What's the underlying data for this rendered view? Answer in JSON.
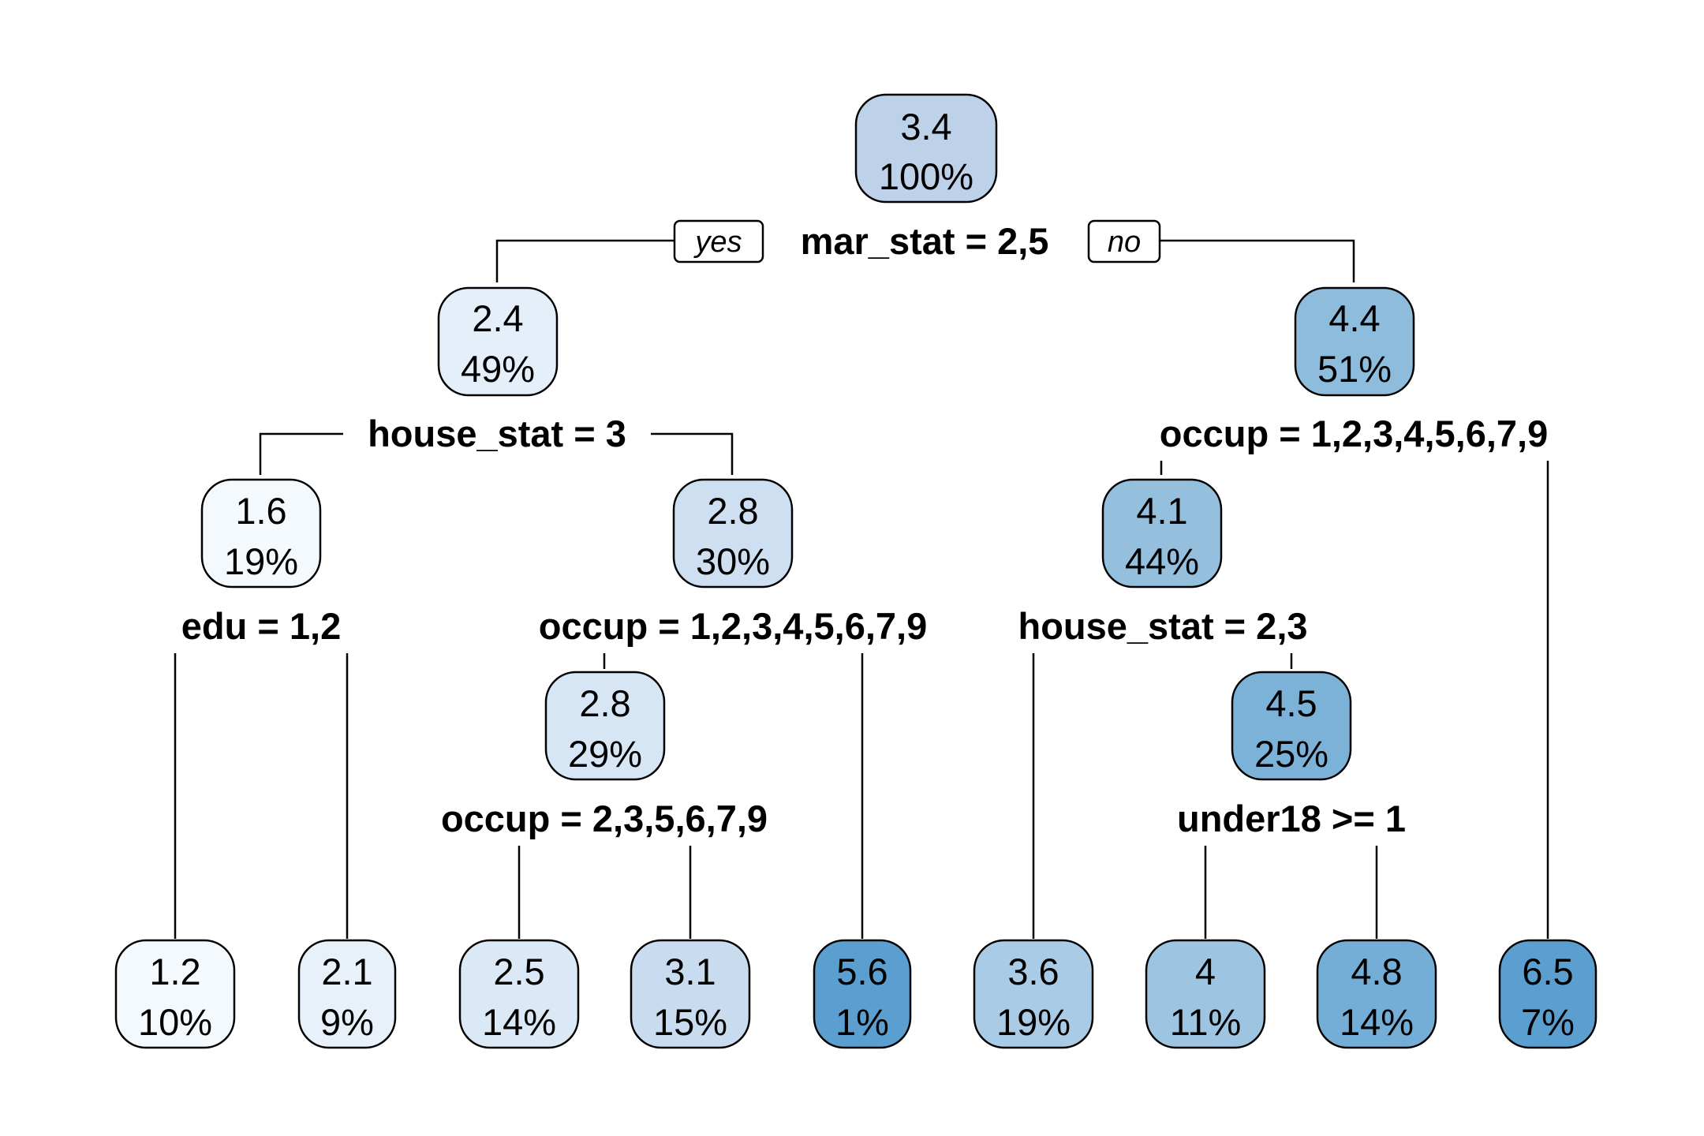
{
  "yes_label": "yes",
  "no_label": "no",
  "nodes": {
    "root": {
      "value": "3.4",
      "percent": "100%",
      "fill": "#bdd1e8"
    },
    "n2": {
      "value": "2.4",
      "percent": "49%",
      "fill": "#e5effa"
    },
    "n3": {
      "value": "4.4",
      "percent": "51%",
      "fill": "#8dbcdd"
    },
    "n4": {
      "value": "1.6",
      "percent": "19%",
      "fill": "#f4f9fe"
    },
    "n5": {
      "value": "2.8",
      "percent": "30%",
      "fill": "#cddff0"
    },
    "n6": {
      "value": "4.1",
      "percent": "44%",
      "fill": "#94c0de"
    },
    "n10": {
      "value": "2.8",
      "percent": "29%",
      "fill": "#d7e6f5"
    },
    "n13": {
      "value": "4.5",
      "percent": "25%",
      "fill": "#7db2d8"
    },
    "l1": {
      "value": "1.2",
      "percent": "10%",
      "fill": "#f4f9fe"
    },
    "l2": {
      "value": "2.1",
      "percent": "9%",
      "fill": "#e8f1fa"
    },
    "l3": {
      "value": "2.5",
      "percent": "14%",
      "fill": "#dbe8f5"
    },
    "l4": {
      "value": "3.1",
      "percent": "15%",
      "fill": "#c9dcef"
    },
    "l5": {
      "value": "5.6",
      "percent": "1%",
      "fill": "#5b9fd0"
    },
    "l6": {
      "value": "3.6",
      "percent": "19%",
      "fill": "#aacbe6"
    },
    "l7": {
      "value": "4",
      "percent": "11%",
      "fill": "#9dc4e1"
    },
    "l8": {
      "value": "4.8",
      "percent": "14%",
      "fill": "#74aed7"
    },
    "l9": {
      "value": "6.5",
      "percent": "7%",
      "fill": "#5b9fd0"
    }
  },
  "splits": {
    "root": "mar_stat = 2,5",
    "n2": "house_stat = 3",
    "n3": "occup = 1,2,3,4,5,6,7,9",
    "n4": "edu = 1,2",
    "n5": "occup = 1,2,3,4,5,6,7,9",
    "n6": "house_stat = 2,3",
    "n10": "occup = 2,3,5,6,7,9",
    "n13": "under18 >= 1"
  }
}
